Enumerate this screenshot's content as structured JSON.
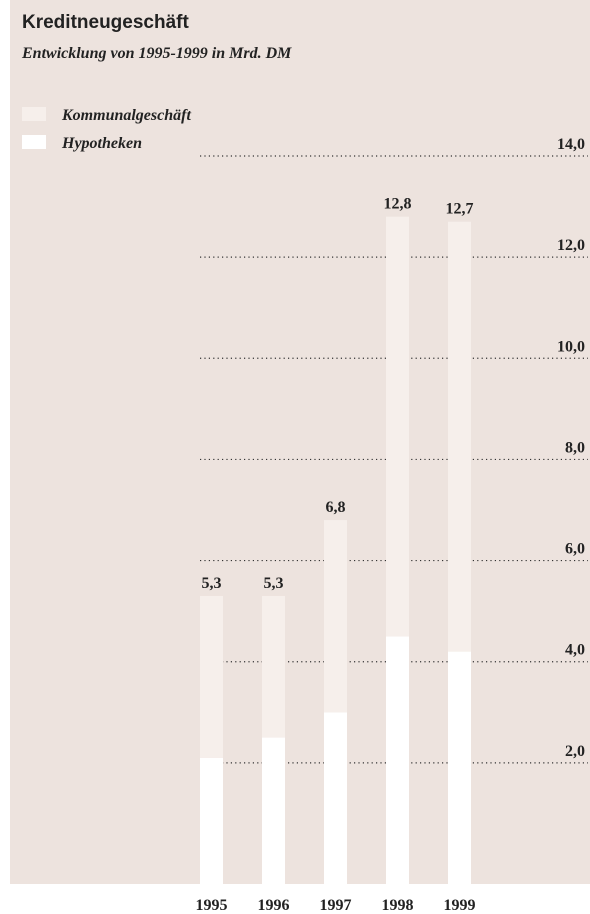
{
  "chart_data": {
    "type": "stacked_bar",
    "title": "Kreditneugeschäft",
    "subtitle": "Entwicklung von 1995-1999 in Mrd. DM",
    "categories": [
      "1995",
      "1996",
      "1997",
      "1998",
      "1999"
    ],
    "series": [
      {
        "name": "Hypotheken",
        "color": "#ffffff",
        "values": [
          2.1,
          2.5,
          3.0,
          4.5,
          4.2
        ]
      },
      {
        "name": "Kommunalgeschäft",
        "color": "#f6efeb",
        "values": [
          3.2,
          2.8,
          3.8,
          8.3,
          8.5
        ]
      }
    ],
    "totals": [
      5.3,
      5.3,
      6.8,
      12.8,
      12.7
    ],
    "total_labels": [
      "5,3",
      "5,3",
      "6,8",
      "12,8",
      "12,7"
    ],
    "ylim": [
      0,
      14
    ],
    "yticks": [
      {
        "value": 2,
        "label": "2,0"
      },
      {
        "value": 4,
        "label": "4,0"
      },
      {
        "value": 6,
        "label": "6,0"
      },
      {
        "value": 8,
        "label": "8,0"
      },
      {
        "value": 10,
        "label": "10,0"
      },
      {
        "value": 12,
        "label": "12,0"
      },
      {
        "value": 14,
        "label": "14,0"
      }
    ],
    "grid": true
  }
}
